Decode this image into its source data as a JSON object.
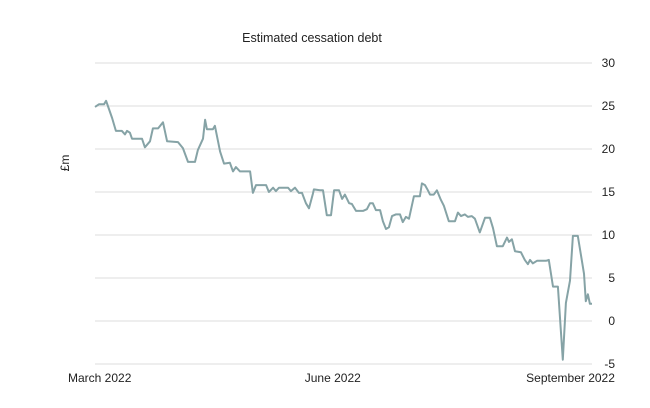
{
  "chart_data": {
    "type": "line",
    "title": "Estimated cessation debt",
    "xlabel": "",
    "ylabel": "£m",
    "x_unit": "days since 1 March 2022",
    "xlim": [
      0,
      192.3
    ],
    "ylim": [
      -5,
      30
    ],
    "grid": true,
    "yticks": [
      30,
      25,
      20,
      15,
      10,
      5,
      0,
      -5
    ],
    "xticks": [
      {
        "x": 0,
        "label": "March 2022"
      },
      {
        "x": 92,
        "label": "June 2022"
      },
      {
        "x": 184,
        "label": "September 2022"
      }
    ],
    "colors": {
      "line": "#86a3a6",
      "grid": "#dddddd"
    },
    "series": [
      {
        "name": "Estimated cessation debt",
        "x": [
          0,
          1.5,
          3.5,
          4.3,
          5,
          6.6,
          8.1,
          10.4,
          11.6,
          12.4,
          13.5,
          14.3,
          18.2,
          19.3,
          21.3,
          22.4,
          24.4,
          26.3,
          27.9,
          32.1,
          34,
          36,
          38.7,
          39.8,
          41.8,
          42.6,
          43.3,
          45.6,
          46.4,
          48.4,
          49.9,
          52.2,
          53.4,
          54.5,
          56.1,
          60,
          61.1,
          62.3,
          66.2,
          67.3,
          68.9,
          70,
          71.2,
          74.7,
          75.8,
          77.4,
          78.9,
          80.1,
          81.6,
          82.8,
          84.3,
          84.7,
          87,
          88.2,
          89.7,
          91.3,
          92.5,
          94.4,
          95.6,
          96.7,
          98.3,
          99.4,
          101,
          103.7,
          105.2,
          106.4,
          107.5,
          108.7,
          110.3,
          111.4,
          112.6,
          113.7,
          114.9,
          116.4,
          118,
          119.1,
          120.3,
          121.5,
          123.4,
          125.7,
          126.5,
          127.7,
          128.8,
          129.6,
          131.1,
          132.3,
          133.8,
          135,
          136.9,
          139.3,
          140.4,
          141.6,
          143.1,
          144.3,
          145.8,
          147,
          148.9,
          150.9,
          152.8,
          154,
          155.5,
          157.8,
          159.4,
          160.2,
          161.3,
          162.5,
          164.8,
          166.3,
          167.5,
          168.3,
          169.4,
          171,
          174.5,
          175.6,
          177.2,
          179.1,
          181,
          182.2,
          183.8,
          184.9,
          186.8,
          188.4,
          189.2,
          189.9,
          190.7,
          191.5,
          192.3
        ],
        "y": [
          24.9,
          25.2,
          25.2,
          25.6,
          25.0,
          23.6,
          22.1,
          22.1,
          21.7,
          22.1,
          21.9,
          21.2,
          21.2,
          20.2,
          20.9,
          22.4,
          22.4,
          23.1,
          20.9,
          20.8,
          20.1,
          18.5,
          18.5,
          19.9,
          21.2,
          23.4,
          22.3,
          22.3,
          22.7,
          19.7,
          18.3,
          18.4,
          17.4,
          17.9,
          17.4,
          17.4,
          14.9,
          15.8,
          15.8,
          15.0,
          15.5,
          15.1,
          15.5,
          15.5,
          15.1,
          15.5,
          14.9,
          14.9,
          13.7,
          13.1,
          14.8,
          15.3,
          15.2,
          15.2,
          12.3,
          12.3,
          15.2,
          15.2,
          14.2,
          14.7,
          13.7,
          13.6,
          12.8,
          12.8,
          13.0,
          13.7,
          13.7,
          12.9,
          12.9,
          11.6,
          10.7,
          10.9,
          12.2,
          12.4,
          12.4,
          11.5,
          12.1,
          11.9,
          14.5,
          14.5,
          16.0,
          15.8,
          15.2,
          14.7,
          14.7,
          15.2,
          14.1,
          13.4,
          11.6,
          11.6,
          12.6,
          12.2,
          12.4,
          12.1,
          12.2,
          11.9,
          10.3,
          12.0,
          12.0,
          10.8,
          8.7,
          8.7,
          9.7,
          9.2,
          9.5,
          8.1,
          8.0,
          7.1,
          6.6,
          7.1,
          6.7,
          7.0,
          7.0,
          7.1,
          4.0,
          4.0,
          -4.5,
          2.1,
          4.7,
          9.9,
          9.9,
          7.0,
          5.5,
          2.3,
          3.1,
          2.0,
          2.0
        ]
      }
    ]
  }
}
